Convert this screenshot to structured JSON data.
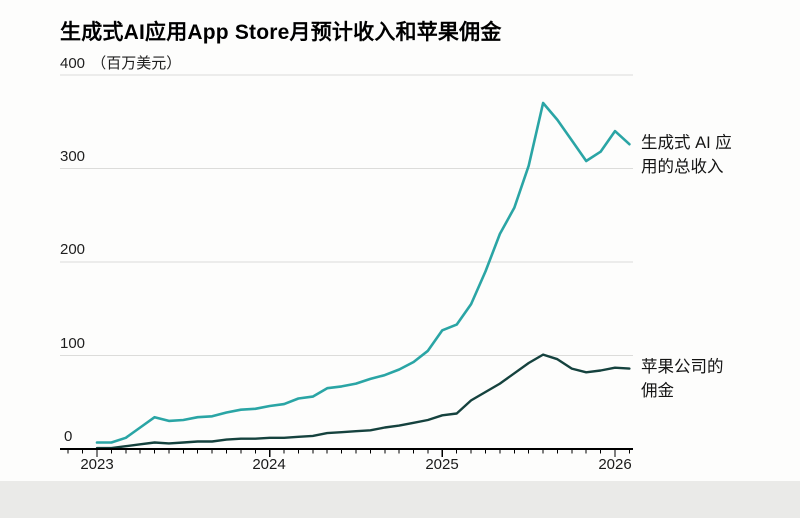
{
  "title": "生成式AI应用App Store月预计收入和苹果佣金",
  "y_axis": {
    "top_tick": "400",
    "unit": "（百万美元）",
    "ticks": [
      "300",
      "200",
      "100",
      "0"
    ]
  },
  "x_axis": {
    "ticks": [
      "2023",
      "2024",
      "2025",
      "2026"
    ]
  },
  "annotations": {
    "revenue_l1": "生成式 AI 应",
    "revenue_l2": "用的总收入",
    "commission_l1": "苹果公司的",
    "commission_l2": "佣金"
  },
  "colors": {
    "revenue_line": "#2aa5a5",
    "commission_line": "#15423e",
    "grid": "#dcdcda",
    "axis": "#000000",
    "text": "#1a1a1a",
    "footer_strip": "#eaeae8"
  },
  "chart_data": {
    "type": "line",
    "title": "生成式AI应用App Store月预计收入和苹果佣金",
    "ylabel": "百万美元",
    "xlabel": "",
    "ylim": [
      0,
      400
    ],
    "yticks": [
      0,
      100,
      200,
      300,
      400
    ],
    "year_ticks": [
      2023,
      2024,
      2025,
      2026
    ],
    "grid": "horizontal",
    "legend_position": "right-annotations",
    "x": [
      "2023-01",
      "2023-02",
      "2023-03",
      "2023-04",
      "2023-05",
      "2023-06",
      "2023-07",
      "2023-08",
      "2023-09",
      "2023-10",
      "2023-11",
      "2023-12",
      "2024-01",
      "2024-02",
      "2024-03",
      "2024-04",
      "2024-05",
      "2024-06",
      "2024-07",
      "2024-08",
      "2024-09",
      "2024-10",
      "2024-11",
      "2024-12",
      "2025-01",
      "2025-02",
      "2025-03",
      "2025-04",
      "2025-05",
      "2025-06",
      "2025-07",
      "2025-08",
      "2025-09",
      "2025-10",
      "2025-11",
      "2025-12",
      "2026-01",
      "2026-02"
    ],
    "series": [
      {
        "name": "生成式 AI 应用的总收入",
        "color": "#2aa5a5",
        "values": [
          7,
          7,
          12,
          23,
          34,
          30,
          31,
          34,
          35,
          39,
          42,
          43,
          46,
          48,
          54,
          56,
          65,
          67,
          70,
          75,
          79,
          85,
          93,
          105,
          127,
          133,
          155,
          190,
          230,
          258,
          303,
          370,
          352,
          330,
          308,
          318,
          340,
          326
        ]
      },
      {
        "name": "苹果公司的佣金",
        "color": "#15423e",
        "values": [
          1,
          1,
          3,
          5,
          7,
          6,
          7,
          8,
          8,
          10,
          11,
          11,
          12,
          12,
          13,
          14,
          17,
          18,
          19,
          20,
          23,
          25,
          28,
          31,
          36,
          38,
          52,
          61,
          70,
          81,
          92,
          101,
          96,
          86,
          82,
          84,
          87,
          86
        ]
      }
    ]
  }
}
